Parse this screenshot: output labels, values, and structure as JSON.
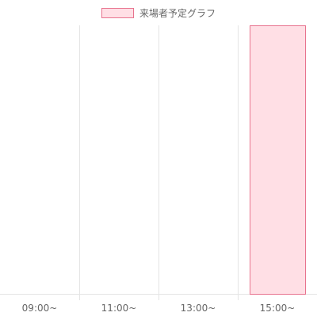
{
  "chart_data": {
    "type": "bar",
    "categories": [
      "09:00~",
      "11:00~",
      "13:00~",
      "15:00~"
    ],
    "series": [
      {
        "name": "来場者予定グラフ",
        "values": [
          0,
          0,
          0,
          1
        ],
        "color": "#ffdfe5",
        "border_color": "#e8738e"
      }
    ],
    "ylim": [
      0,
      1
    ],
    "grid": true,
    "legend_position": "top",
    "gridline_color": "#e5e5e5"
  }
}
